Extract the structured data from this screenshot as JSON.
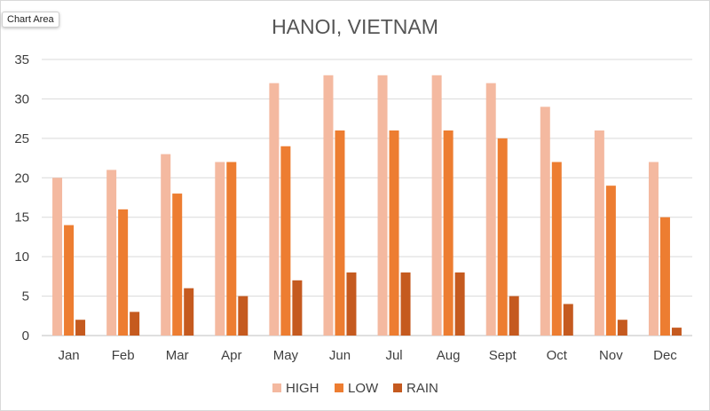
{
  "tooltip": "Chart Area",
  "chart_data": {
    "type": "bar",
    "title": "HANOI, VIETNAM",
    "xlabel": "",
    "ylabel": "",
    "ylim": [
      0,
      35
    ],
    "yticks": [
      0,
      5,
      10,
      15,
      20,
      25,
      30,
      35
    ],
    "grid": true,
    "legend_position": "bottom",
    "categories": [
      "Jan",
      "Feb",
      "Mar",
      "Apr",
      "May",
      "Jun",
      "Jul",
      "Aug",
      "Sept",
      "Oct",
      "Nov",
      "Dec"
    ],
    "series": [
      {
        "name": "HIGH",
        "color": "#f4b9a0",
        "values": [
          20,
          21,
          23,
          22,
          32,
          33,
          33,
          33,
          32,
          29,
          26,
          22
        ]
      },
      {
        "name": "LOW",
        "color": "#ed7d31",
        "values": [
          14,
          16,
          18,
          22,
          24,
          26,
          26,
          26,
          25,
          22,
          19,
          15
        ]
      },
      {
        "name": "RAIN",
        "color": "#c55a1f",
        "values": [
          2,
          3,
          6,
          5,
          7,
          8,
          8,
          8,
          5,
          4,
          2,
          1
        ]
      }
    ]
  }
}
